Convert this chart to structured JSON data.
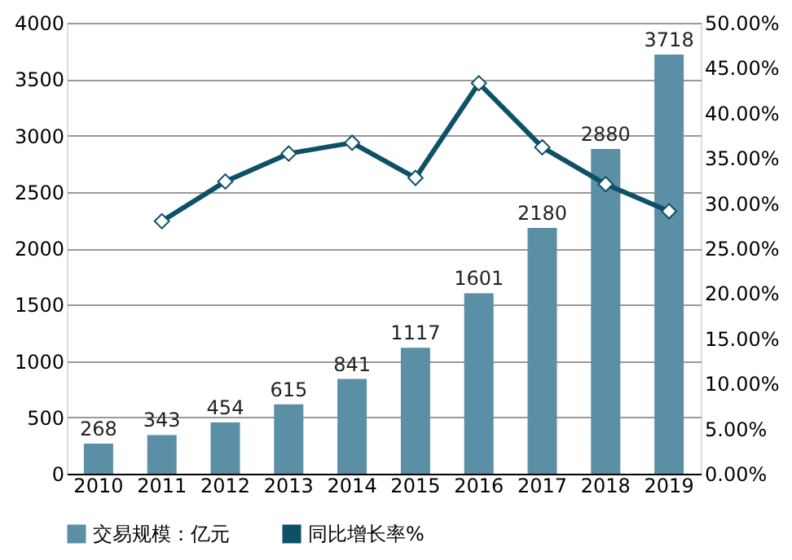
{
  "chart_data": {
    "type": "bar",
    "categories": [
      "2010",
      "2011",
      "2012",
      "2013",
      "2014",
      "2015",
      "2016",
      "2017",
      "2018",
      "2019"
    ],
    "series": [
      {
        "name": "交易规模：亿元",
        "color": "#5b8fa6",
        "values": [
          268,
          343,
          454,
          615,
          841,
          1117,
          1601,
          2180,
          2880,
          3718
        ],
        "value_labels": [
          "268",
          "343",
          "454",
          "615",
          "841",
          "1117",
          "1601",
          "2180",
          "2880",
          "3718"
        ]
      },
      {
        "name": "同比增长率%",
        "type": "line",
        "axis": "y2",
        "color": "#0e5068",
        "marker": "diamond",
        "values": [
          null,
          28.0,
          32.4,
          35.5,
          36.7,
          32.8,
          43.3,
          36.2,
          32.1,
          29.1
        ]
      }
    ],
    "ylim": [
      0,
      4000
    ],
    "yticks": [
      0,
      500,
      1000,
      1500,
      2000,
      2500,
      3000,
      3500,
      4000
    ],
    "y2lim": [
      0,
      50
    ],
    "y2ticks": [
      {
        "value": 0,
        "label": "0.00%"
      },
      {
        "value": 5,
        "label": "5.00%"
      },
      {
        "value": 10,
        "label": "10.00%"
      },
      {
        "value": 15,
        "label": "15.00%"
      },
      {
        "value": 20,
        "label": "20.00%"
      },
      {
        "value": 25,
        "label": "25.00%"
      },
      {
        "value": 30,
        "label": "30.00%"
      },
      {
        "value": 35,
        "label": "35.00%"
      },
      {
        "value": 40,
        "label": "40.00%"
      },
      {
        "value": 45,
        "label": "45.00%"
      },
      {
        "value": 50,
        "label": "50.00%"
      }
    ],
    "grid": "y",
    "legend": "bottom"
  }
}
